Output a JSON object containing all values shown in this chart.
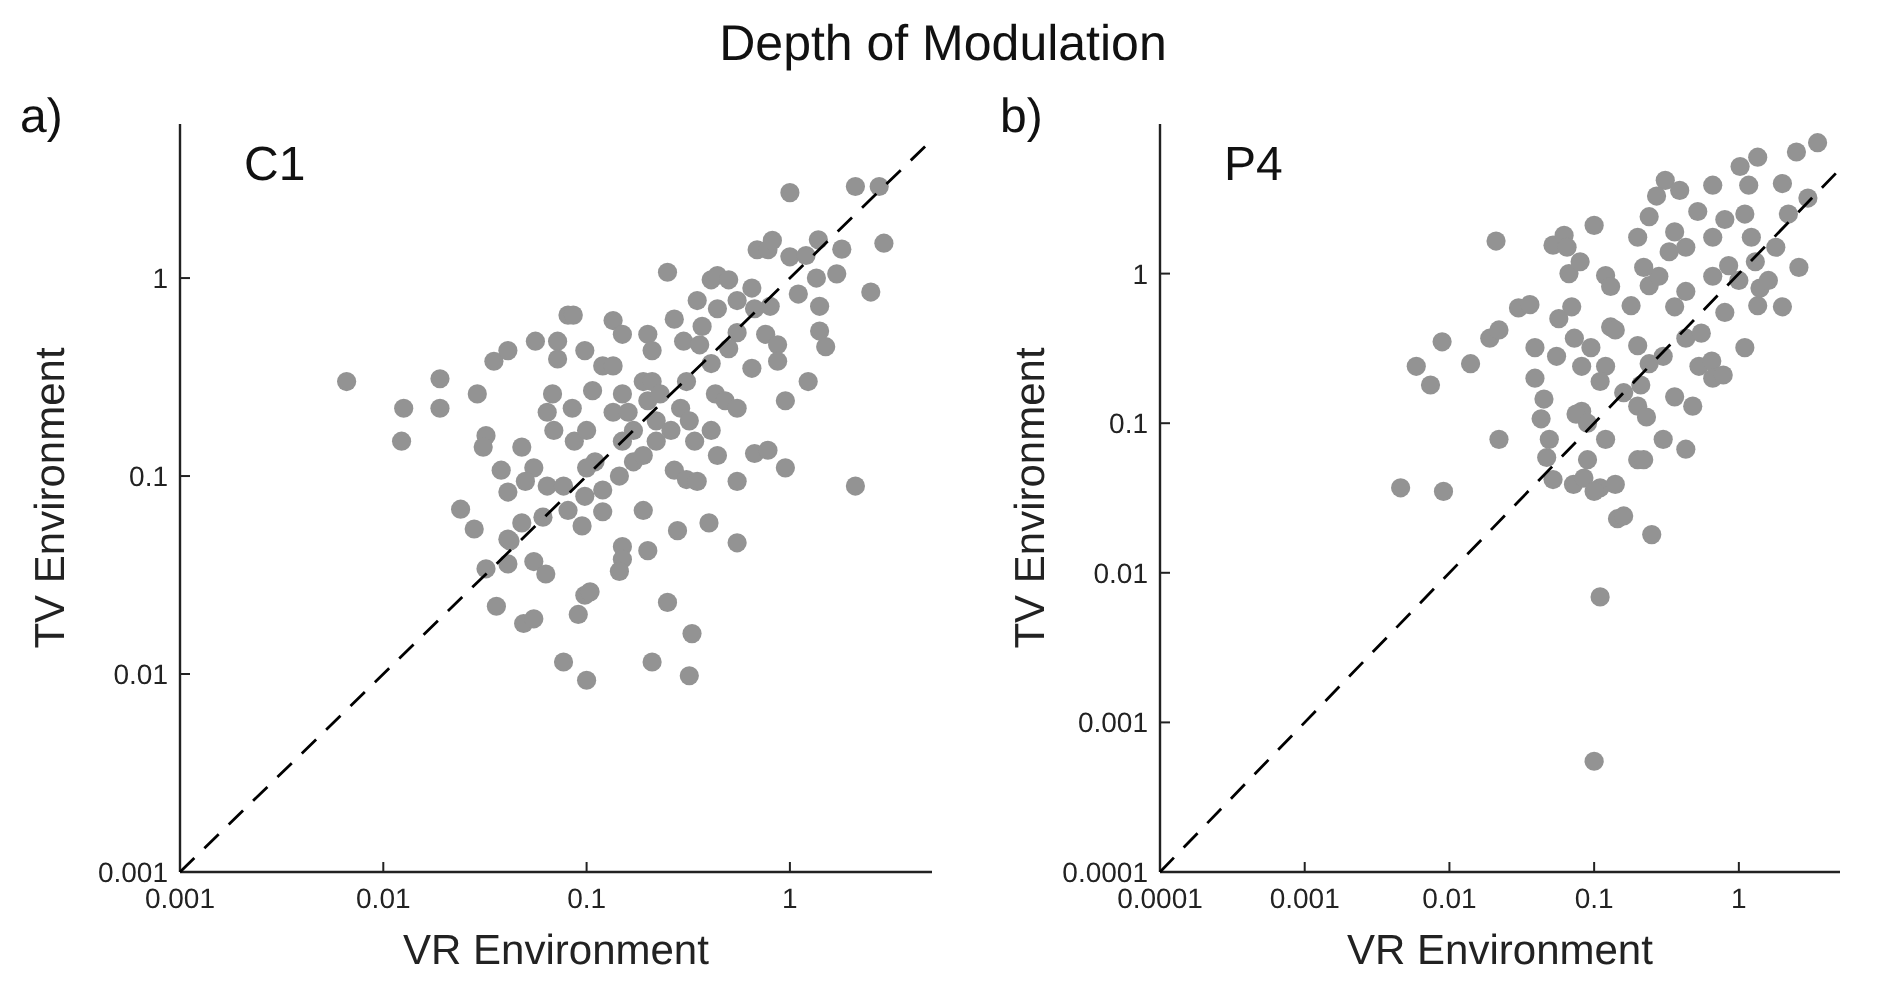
{
  "chart_data": [
    {
      "type": "scatter",
      "title": "Depth of Modulation",
      "xlabel": "VR Environment",
      "ylabel": "TV Environment",
      "annotations": [
        "a)",
        "C1"
      ],
      "log": "xy",
      "xlim": [
        0.001,
        5
      ],
      "ylim": [
        0.001,
        6
      ],
      "xticks": [
        0.001,
        0.01,
        0.1,
        1
      ],
      "yticks": [
        0.001,
        0.01,
        0.1,
        1
      ],
      "grid": false,
      "series": [
        {
          "color": "#939393",
          "marker": "circle",
          "x": [
            0.0066,
            0.0126,
            0.0123,
            0.019,
            0.019,
            0.024,
            0.028,
            0.029,
            0.032,
            0.031,
            0.035,
            0.041,
            0.038,
            0.041,
            0.048,
            0.055,
            0.05,
            0.056,
            0.072,
            0.081,
            0.086,
            0.072,
            0.068,
            0.064,
            0.069,
            0.064,
            0.077,
            0.081,
            0.061,
            0.048,
            0.041,
            0.098,
            0.085,
            0.087,
            0.107,
            0.1,
            0.11,
            0.1,
            0.098,
            0.12,
            0.12,
            0.135,
            0.15,
            0.12,
            0.135,
            0.15,
            0.135,
            0.16,
            0.15,
            0.17,
            0.145,
            0.17,
            0.19,
            0.19,
            0.2,
            0.21,
            0.19,
            0.21,
            0.2,
            0.23,
            0.22,
            0.26,
            0.22,
            0.27,
            0.28,
            0.25,
            0.27,
            0.3,
            0.31,
            0.29,
            0.32,
            0.34,
            0.31,
            0.35,
            0.35,
            0.37,
            0.36,
            0.41,
            0.44,
            0.44,
            0.41,
            0.43,
            0.48,
            0.41,
            0.44,
            0.5,
            0.55,
            0.55,
            0.5,
            0.55,
            0.55,
            0.55,
            0.65,
            0.67,
            0.65,
            0.67,
            0.69,
            0.78,
            0.82,
            0.76,
            0.8,
            0.87,
            0.87,
            0.95,
            0.78,
            0.95,
            1.0,
            1.0,
            1.1,
            1.2,
            1.38,
            1.35,
            1.4,
            1.4,
            1.5,
            1.23,
            1.7,
            1.8,
            2.1,
            2.75,
            2.9,
            2.5,
            2.1,
            0.042,
            0.032,
            0.041,
            0.036,
            0.055,
            0.063,
            0.049,
            0.055,
            0.091,
            0.098,
            0.104,
            0.077,
            0.1,
            0.095,
            0.15,
            0.15,
            0.145,
            0.2,
            0.25,
            0.21,
            0.33,
            0.32,
            0.4
          ],
          "values": [
            0.3,
            0.22,
            0.15,
            0.31,
            0.22,
            0.068,
            0.054,
            0.26,
            0.16,
            0.14,
            0.38,
            0.43,
            0.107,
            0.083,
            0.14,
            0.11,
            0.094,
            0.48,
            0.48,
            0.65,
            0.65,
            0.39,
            0.26,
            0.21,
            0.17,
            0.089,
            0.089,
            0.067,
            0.062,
            0.058,
            0.048,
            0.43,
            0.22,
            0.15,
            0.27,
            0.17,
            0.118,
            0.11,
            0.079,
            0.085,
            0.066,
            0.61,
            0.52,
            0.36,
            0.36,
            0.26,
            0.21,
            0.21,
            0.15,
            0.17,
            0.1,
            0.118,
            0.127,
            0.067,
            0.52,
            0.43,
            0.3,
            0.3,
            0.24,
            0.26,
            0.19,
            0.17,
            0.15,
            0.107,
            0.053,
            1.07,
            0.62,
            0.48,
            0.3,
            0.22,
            0.19,
            0.15,
            0.096,
            0.094,
            0.77,
            0.57,
            0.46,
            0.98,
            1.03,
            0.7,
            0.37,
            0.26,
            0.24,
            0.17,
            0.127,
            0.98,
            0.77,
            0.53,
            0.44,
            0.22,
            0.094,
            0.046,
            0.89,
            0.7,
            0.35,
            0.13,
            1.39,
            1.39,
            1.55,
            0.52,
            0.72,
            0.46,
            0.38,
            0.24,
            0.135,
            0.11,
            2.7,
            1.28,
            0.83,
            1.3,
            1.56,
            1.0,
            0.72,
            0.54,
            0.45,
            0.3,
            1.05,
            1.4,
            2.9,
            2.9,
            1.5,
            0.85,
            0.089,
            0.047,
            0.034,
            0.036,
            0.022,
            0.037,
            0.032,
            0.018,
            0.019,
            0.02,
            0.025,
            0.026,
            0.0115,
            0.0093,
            0.056,
            0.044,
            0.038,
            0.033,
            0.042,
            0.023,
            0.0115,
            0.016,
            0.0098,
            0.058
          ]
        },
        {
          "type": "line",
          "color": "#000000",
          "line_style": "dashed",
          "marker": "none",
          "x": [
            0.001,
            5
          ],
          "values": [
            0.001,
            5
          ]
        }
      ]
    },
    {
      "type": "scatter",
      "xlabel": "VR Environment",
      "ylabel": "TV Environment",
      "annotations": [
        "b)",
        "P4"
      ],
      "log": "xy",
      "xlim": [
        0.0001,
        5
      ],
      "ylim": [
        0.0001,
        10
      ],
      "xticks": [
        0.0001,
        0.001,
        0.01,
        0.1,
        1
      ],
      "yticks": [
        0.0001,
        0.001,
        0.01,
        0.1,
        1
      ],
      "grid": false,
      "series": [
        {
          "color": "#939393",
          "marker": "circle",
          "x": [
            0.021,
            0.0089,
            0.0059,
            0.0074,
            0.014,
            0.0046,
            0.0091,
            0.022,
            0.019,
            0.022,
            0.03,
            0.036,
            0.039,
            0.039,
            0.045,
            0.043,
            0.049,
            0.047,
            0.052,
            0.052,
            0.062,
            0.065,
            0.1,
            0.067,
            0.08,
            0.12,
            0.13,
            0.057,
            0.07,
            0.073,
            0.055,
            0.082,
            0.095,
            0.13,
            0.14,
            0.12,
            0.11,
            0.082,
            0.075,
            0.09,
            0.12,
            0.09,
            0.072,
            0.085,
            0.11,
            0.14,
            0.2,
            0.22,
            0.43,
            0.2,
            0.23,
            0.3,
            0.36,
            0.48,
            0.21,
            0.16,
            0.2,
            0.24,
            0.3,
            0.18,
            0.24,
            0.28,
            0.22,
            0.2,
            0.24,
            0.31,
            0.39,
            0.27,
            0.36,
            0.33,
            0.43,
            0.43,
            0.36,
            0.43,
            0.55,
            0.53,
            0.65,
            0.66,
            0.78,
            1.1,
            0.66,
            0.52,
            0.66,
            0.8,
            0.85,
            1.0,
            0.66,
            0.8,
            1.02,
            1.17,
            1.35,
            1.1,
            1.22,
            1.3,
            1.35,
            1.4,
            2.5,
            3.5,
            2.0,
            3.0,
            2.2,
            1.8,
            2.6,
            1.6,
            2.0,
            0.1,
            0.145,
            0.16,
            0.25,
            0.11,
            0.1
          ],
          "values": [
            1.65,
            0.35,
            0.24,
            0.18,
            0.25,
            0.037,
            0.035,
            0.078,
            0.37,
            0.42,
            0.59,
            0.62,
            0.32,
            0.2,
            0.145,
            0.107,
            0.078,
            0.059,
            0.042,
            1.55,
            1.8,
            1.5,
            2.1,
            1.0,
            1.2,
            0.97,
            0.82,
            0.5,
            0.6,
            0.37,
            0.28,
            0.24,
            0.32,
            0.44,
            0.42,
            0.24,
            0.19,
            0.12,
            0.115,
            0.1,
            0.078,
            0.057,
            0.039,
            0.043,
            0.037,
            0.039,
            0.057,
            0.057,
            0.067,
            0.13,
            0.11,
            0.078,
            0.15,
            0.13,
            0.18,
            0.16,
            0.33,
            0.25,
            0.28,
            0.61,
            0.83,
            0.96,
            1.1,
            1.75,
            2.4,
            4.2,
            3.6,
            3.3,
            1.9,
            1.4,
            1.5,
            0.76,
            0.6,
            0.37,
            0.4,
            0.24,
            0.26,
            0.2,
            0.21,
            0.32,
            3.9,
            2.6,
            1.75,
            2.3,
            1.13,
            0.9,
            0.96,
            0.55,
            5.2,
            3.9,
            6.0,
            2.5,
            1.75,
            1.2,
            0.61,
            0.8,
            6.5,
            7.5,
            4.0,
            3.2,
            2.5,
            1.5,
            1.1,
            0.9,
            0.6,
            0.035,
            0.023,
            0.024,
            0.018,
            0.0069,
            0.00055
          ]
        },
        {
          "type": "line",
          "color": "#000000",
          "line_style": "dashed",
          "marker": "none",
          "x": [
            0.0001,
            5
          ],
          "values": [
            0.0001,
            5
          ]
        }
      ]
    }
  ]
}
